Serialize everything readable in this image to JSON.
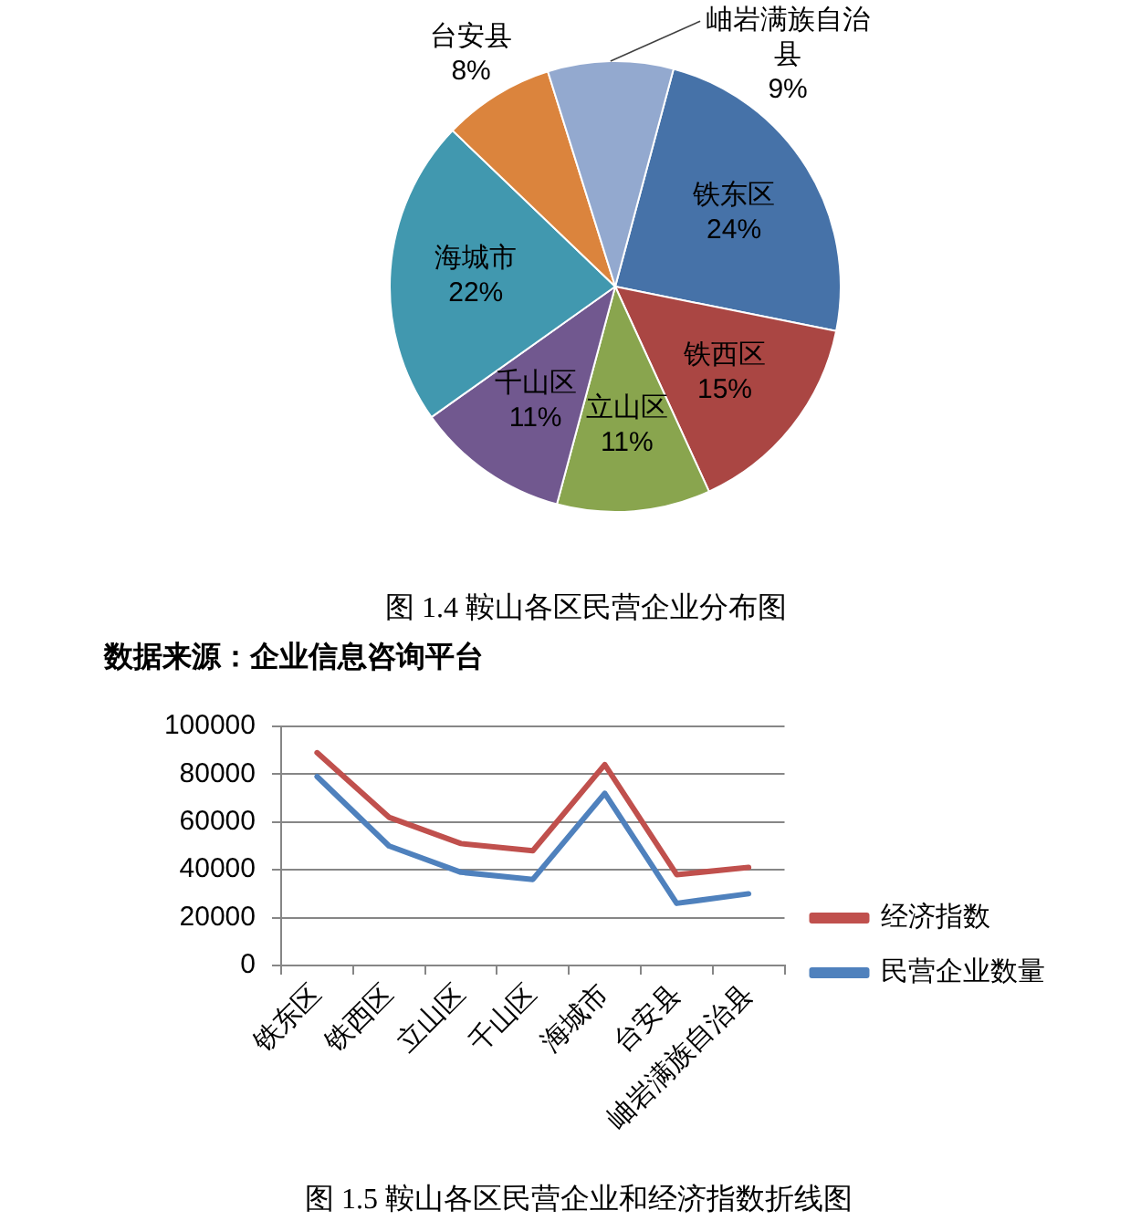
{
  "chart_data": [
    {
      "type": "pie",
      "title": "图 1.4 鞍山各区民营企业分布图",
      "annotations": [
        "数据来源：企业信息咨询平台"
      ],
      "categories": [
        "铁东区",
        "铁西区",
        "立山区",
        "千山区",
        "海城市",
        "台安县",
        "岫岩满族自治县"
      ],
      "values": [
        24,
        15,
        11,
        11,
        22,
        8,
        9
      ],
      "colors": [
        "#4672a8",
        "#aa4643",
        "#89a54e",
        "#71588f",
        "#4198af",
        "#db843d",
        "#93a9cf"
      ],
      "value_labels": [
        "24%",
        "15%",
        "11%",
        "11%",
        "22%",
        "8%",
        "9%"
      ]
    },
    {
      "type": "line",
      "title": "图 1.5 鞍山各区民营企业和经济指数折线图",
      "categories": [
        "铁东区",
        "铁西区",
        "立山区",
        "千山区",
        "海城市",
        "台安县",
        "岫岩满族自治县"
      ],
      "series": [
        {
          "name": "经济指数",
          "color": "#c0504d",
          "values": [
            89000,
            62000,
            51000,
            48000,
            84000,
            38000,
            41000
          ]
        },
        {
          "name": "民营企业数量",
          "color": "#4f81bd",
          "values": [
            79000,
            50000,
            39000,
            36000,
            72000,
            26000,
            30000
          ]
        }
      ],
      "ylim": [
        0,
        100000
      ],
      "yticks": [
        0,
        20000,
        40000,
        60000,
        80000,
        100000
      ],
      "grid": "y",
      "legend": "right"
    }
  ]
}
